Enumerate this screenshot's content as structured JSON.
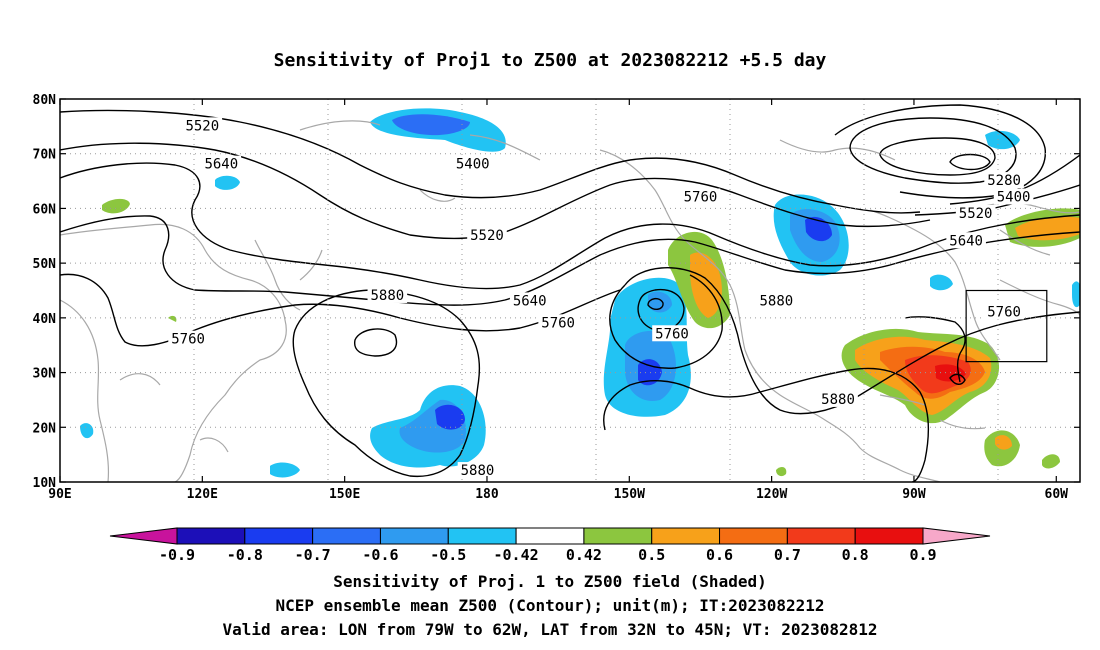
{
  "title": "Sensitivity of Proj1 to Z500 at 2023082212 +5.5 day",
  "map": {
    "lat_labels": [
      "80N",
      "70N",
      "60N",
      "50N",
      "40N",
      "30N",
      "20N",
      "10N"
    ],
    "lon_labels": [
      "90E",
      "120E",
      "150E",
      "180",
      "150W",
      "120W",
      "90W",
      "60W"
    ],
    "contour_labels": [
      {
        "text": "5520",
        "lon": 120,
        "lat": 75
      },
      {
        "text": "5640",
        "lon": 124,
        "lat": 68
      },
      {
        "text": "5400",
        "lon": 177,
        "lat": 68
      },
      {
        "text": "5520",
        "lon": 180,
        "lat": 55
      },
      {
        "text": "5640",
        "lon": 189,
        "lat": 43
      },
      {
        "text": "5760",
        "lon": 195,
        "lat": 39
      },
      {
        "text": "5880",
        "lon": 159,
        "lat": 44
      },
      {
        "text": "5760",
        "lon": 117,
        "lat": 36
      },
      {
        "text": "5760",
        "lon": 225,
        "lat": 62
      },
      {
        "text": "5880",
        "lon": 241,
        "lat": 43
      },
      {
        "text": "5760",
        "lon": 219,
        "lat": 37
      },
      {
        "text": "5880",
        "lon": 254,
        "lat": 25
      },
      {
        "text": "5760",
        "lon": 289,
        "lat": 41
      },
      {
        "text": "5280",
        "lon": 289,
        "lat": 65
      },
      {
        "text": "5400",
        "lon": 291,
        "lat": 62
      },
      {
        "text": "5520",
        "lon": 283,
        "lat": 59
      },
      {
        "text": "5640",
        "lon": 281,
        "lat": 54
      },
      {
        "text": "5880",
        "lon": 178,
        "lat": 12
      }
    ],
    "valid_box": {
      "lon_from": 281,
      "lon_to": 298,
      "lat_from": 32,
      "lat_to": 45
    }
  },
  "colorbar": {
    "labels": [
      "-0.9",
      "-0.8",
      "-0.7",
      "-0.6",
      "-0.5",
      "-0.42",
      "0.42",
      "0.5",
      "0.6",
      "0.7",
      "0.8",
      "0.9"
    ],
    "colors": [
      "#c8139c",
      "#1c0fb8",
      "#1a3cf0",
      "#2b6ef5",
      "#2f9bf0",
      "#22c3f3",
      "#ffffff",
      "#8cc63f",
      "#f7a11a",
      "#f46d13",
      "#f23a1b",
      "#e80f0f",
      "#f7a8c9"
    ]
  },
  "captions": [
    "Sensitivity of Proj. 1 to Z500 field (Shaded)",
    "NCEP ensemble mean Z500 (Contour); unit(m); IT:2023082212",
    "Valid area: LON from 79W to 62W, LAT from 32N to 45N; VT: 2023082812"
  ]
}
